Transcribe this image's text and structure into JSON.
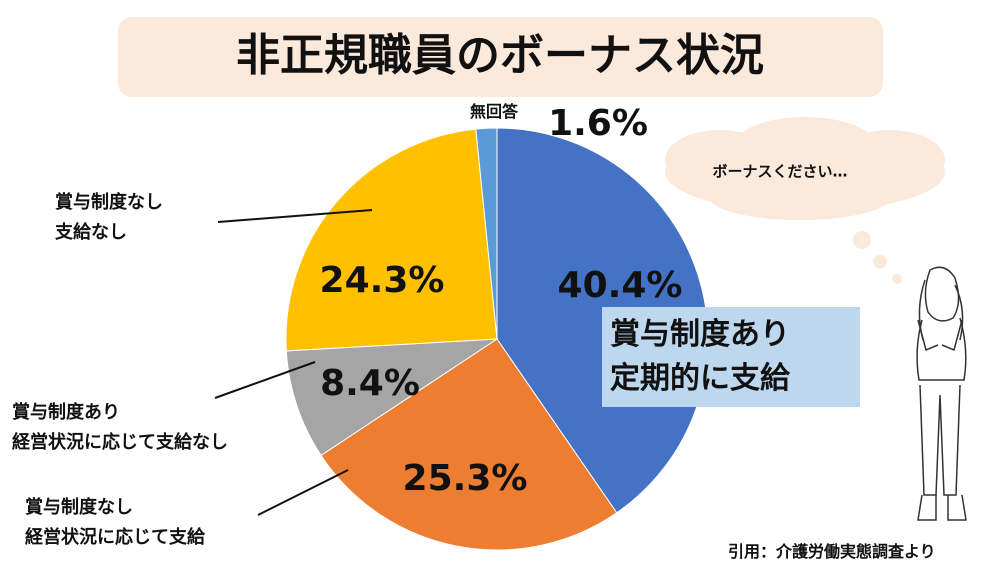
{
  "chart_data": {
    "type": "pie",
    "title": "非正規職員のボーナス状況",
    "categories": [
      "賞与制度あり\n定期的に支給",
      "賞与制度なし\n経営状況に応じて支給",
      "賞与制度あり\n経営状況に応じて支給なし",
      "賞与制度なし\n支給なし",
      "無回答"
    ],
    "values": [
      40.4,
      25.3,
      8.4,
      24.3,
      1.6
    ],
    "value_labels": [
      "40.4%",
      "25.3%",
      "8.4%",
      "24.3%",
      "1.6%"
    ],
    "colors": [
      "#4472c4",
      "#ed7d31",
      "#a5a5a5",
      "#ffc000",
      "#5b9bd5"
    ],
    "annotation": "ボーナスください…",
    "source": "引用：介護労働実態調査より"
  }
}
